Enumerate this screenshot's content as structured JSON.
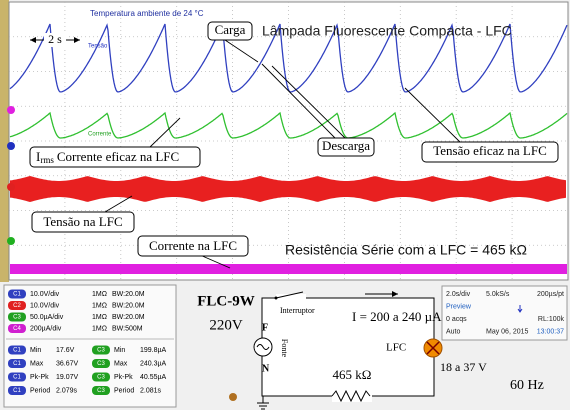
{
  "screen": {
    "temperature": "Temperatura ambiente de 24 °C",
    "time_marker": "2 s",
    "title": "Lâmpada Fluorescente Compacta - LFC",
    "trace_labels": {
      "voltage": "Tensão",
      "current": "Corrente"
    },
    "callouts": {
      "charge": "Carga",
      "discharge": "Descarga",
      "rms_current": {
        "symbol": "I",
        "subscript": "rms",
        "text": "Corrente eficaz na LFC"
      },
      "rms_voltage": "Tensão eficaz na LFC",
      "lamp_voltage": "Tensão na LFC",
      "lamp_current": "Corrente na LFC"
    },
    "series_resistance": "Resistência Série com a LFC = 465 kΩ"
  },
  "channels": [
    [
      "C1",
      "10.0V/div",
      "1MΩ",
      "BW:20.0M"
    ],
    [
      "C2",
      "10.0V/div",
      "1MΩ",
      "BW:20.0M"
    ],
    [
      "C3",
      "50.0µA/div",
      "1MΩ",
      "BW:20.0M"
    ],
    [
      "C4",
      "200µA/div",
      "1MΩ",
      "BW:500M"
    ]
  ],
  "measurements": [
    [
      "C1",
      "Min",
      "17.6V",
      "C3",
      "Min",
      "199.8µA"
    ],
    [
      "C1",
      "Max",
      "36.67V",
      "C3",
      "Max",
      "240.3µA"
    ],
    [
      "C1",
      "Pk-Pk",
      "19.07V",
      "C3",
      "Pk-Pk",
      "40.55µA"
    ],
    [
      "C1",
      "Period",
      "2.079s",
      "C3",
      "Period",
      "2.081s"
    ]
  ],
  "device": {
    "model": "FLC-9W",
    "voltage": "220V"
  },
  "circuit": {
    "switch": "Interruptor",
    "current": "I = 200 a 240 µA",
    "phase": "F",
    "source": "Fonte",
    "neutral": "N",
    "lamp": "LFC",
    "resistor": "465 kΩ",
    "lamp_voltage": "18 a 37 V",
    "frequency": "60 Hz"
  },
  "timebase": {
    "rows": [
      [
        "2.0s/div",
        "5.0kS/s",
        "200µs/pt"
      ],
      [
        "Preview",
        "",
        ""
      ],
      [
        "0 acqs",
        "",
        "RL:100k"
      ],
      [
        "Auto",
        "May 06, 2015",
        "13:00:37"
      ]
    ]
  }
}
